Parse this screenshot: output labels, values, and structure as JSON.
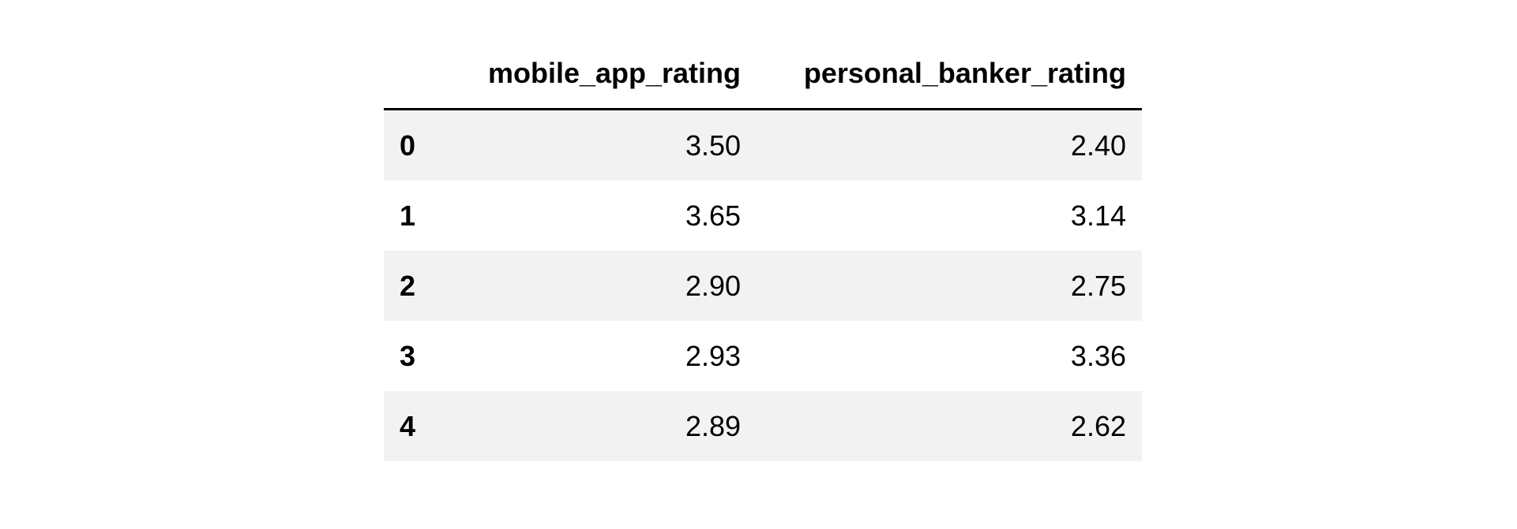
{
  "table": {
    "columns": [
      "mobile_app_rating",
      "personal_banker_rating"
    ],
    "rows": [
      {
        "index": "0",
        "mobile_app_rating": "3.50",
        "personal_banker_rating": "2.40"
      },
      {
        "index": "1",
        "mobile_app_rating": "3.65",
        "personal_banker_rating": "3.14"
      },
      {
        "index": "2",
        "mobile_app_rating": "2.90",
        "personal_banker_rating": "2.75"
      },
      {
        "index": "3",
        "mobile_app_rating": "2.93",
        "personal_banker_rating": "3.36"
      },
      {
        "index": "4",
        "mobile_app_rating": "2.89",
        "personal_banker_rating": "2.62"
      }
    ]
  },
  "chart_data": {
    "type": "table",
    "columns": [
      "mobile_app_rating",
      "personal_banker_rating"
    ],
    "index": [
      0,
      1,
      2,
      3,
      4
    ],
    "values": [
      [
        3.5,
        2.4
      ],
      [
        3.65,
        3.14
      ],
      [
        2.9,
        2.75
      ],
      [
        2.93,
        3.36
      ],
      [
        2.89,
        2.62
      ]
    ]
  }
}
